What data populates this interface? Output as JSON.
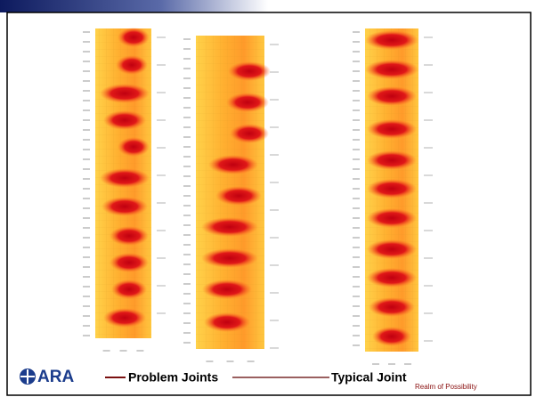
{
  "logo": "ARA",
  "labels": {
    "problem": "Problem Joints",
    "typical": "Typical Joint"
  },
  "footer": "Realm of Possibility"
}
